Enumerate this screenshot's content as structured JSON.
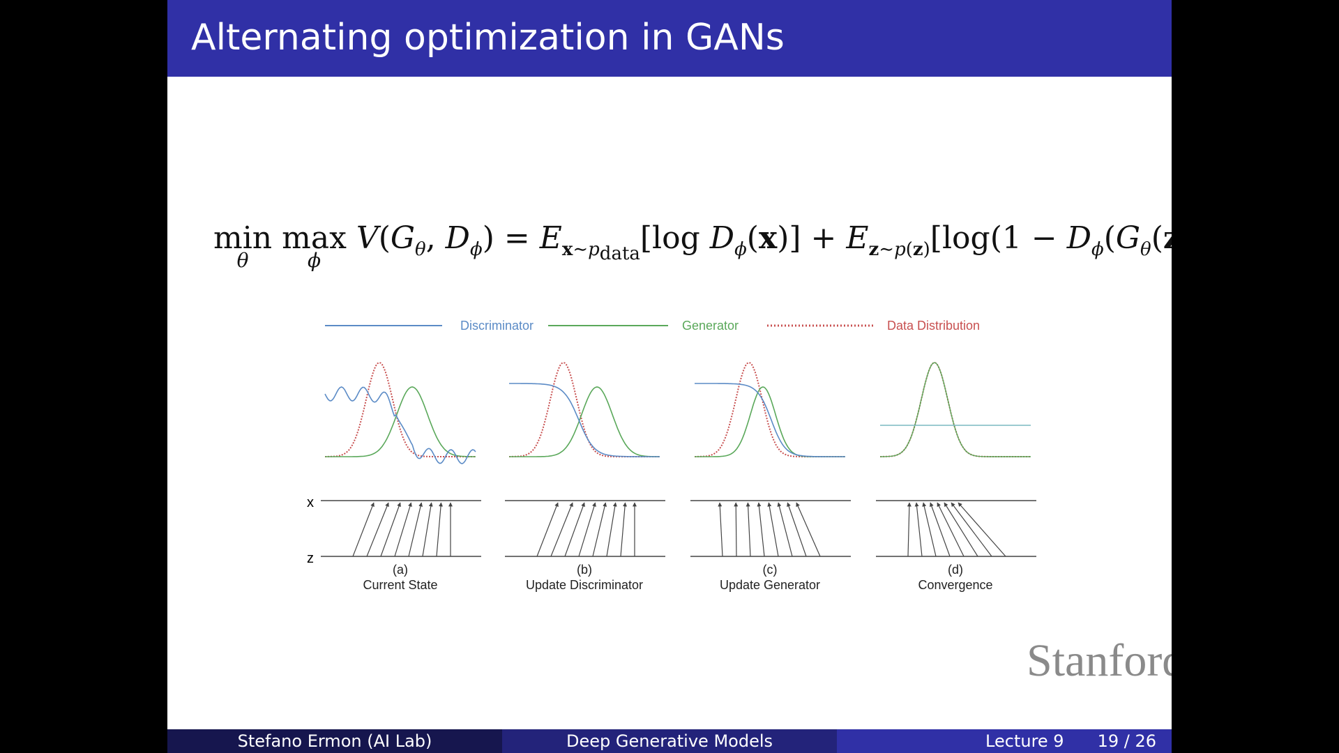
{
  "slide": {
    "title": "Alternating optimization in GANs",
    "formula": {
      "min": "min",
      "min_sub": "θ",
      "max": "max",
      "max_sub": "ϕ"
    },
    "footer": {
      "author": "Stefano Ermon  (AI Lab)",
      "course": "Deep Generative Models",
      "lecture": "Lecture 9",
      "page": "19 / 26"
    },
    "logo_text": "Stanford"
  },
  "figure": {
    "legend": [
      {
        "label": "Discriminator",
        "color": "#5b8bc6"
      },
      {
        "label": "Generator",
        "color": "#5aa85a"
      },
      {
        "label": "Data Distribution",
        "color": "#c85050"
      }
    ],
    "axis_x_label": "x",
    "axis_z_label": "z",
    "panels": [
      {
        "letter": "(a)",
        "caption": "Current State"
      },
      {
        "letter": "(b)",
        "caption": "Update Discriminator"
      },
      {
        "letter": "(c)",
        "caption": "Update Generator"
      },
      {
        "letter": "(d)",
        "caption": "Convergence"
      }
    ]
  }
}
